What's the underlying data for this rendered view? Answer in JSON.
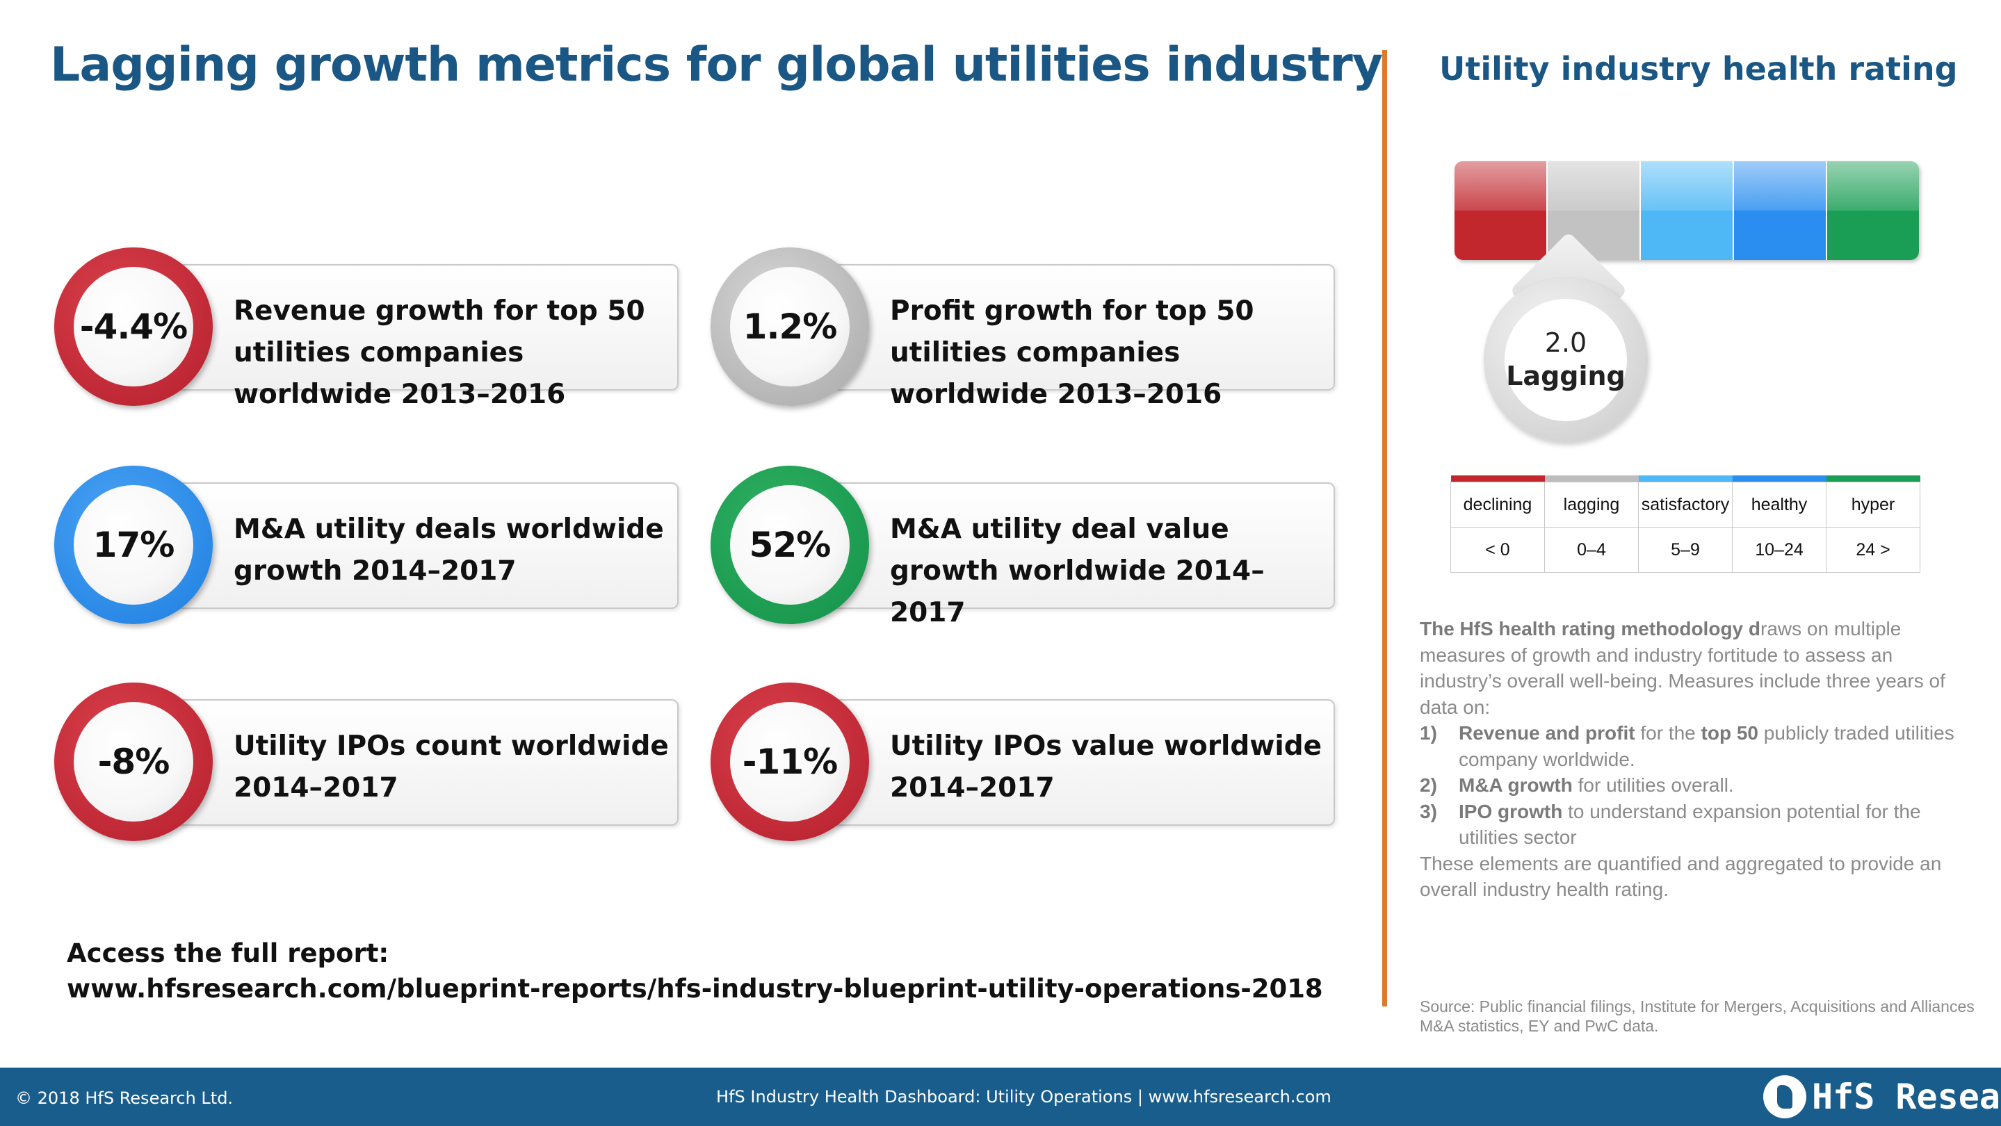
{
  "title": "Lagging growth metrics for global utilities industry",
  "metrics": [
    {
      "value": "-4.4%",
      "label": "Revenue growth for top 50 utilities companies worldwide 2013–2016",
      "ring_color": "red"
    },
    {
      "value": "1.2%",
      "label": "Profit growth for top 50 utilities companies worldwide 2013–2016",
      "ring_color": "gray"
    },
    {
      "value": "17%",
      "label": "M&A utility deals worldwide growth 2014–2017",
      "ring_color": "blue"
    },
    {
      "value": "52%",
      "label": "M&A utility deal value growth worldwide 2014–2017",
      "ring_color": "green"
    },
    {
      "value": "-8%",
      "label": "Utility IPOs count worldwide 2014–2017",
      "ring_color": "red"
    },
    {
      "value": "-11%",
      "label": "Utility IPOs value worldwide 2014–2017",
      "ring_color": "red"
    }
  ],
  "access": {
    "label": "Access the full report:",
    "url": "www.hfsresearch.com/blueprint-reports/hfs-industry-blueprint-utility-operations-2018"
  },
  "rating": {
    "title": "Utility industry health rating",
    "value": "2.0",
    "word": "Lagging",
    "selected_segment": "lagging",
    "segment_colors": [
      "#c1272d",
      "#c2c2c2",
      "#4db8f5",
      "#2a8ef0",
      "#1a9e55"
    ],
    "legend": [
      {
        "name": "declining",
        "range": "< 0",
        "color": "#c1272d"
      },
      {
        "name": "lagging",
        "range": "0–4",
        "color": "#bdbdbd"
      },
      {
        "name": "satisfactory",
        "range": "5–9",
        "color": "#4db8f5"
      },
      {
        "name": "healthy",
        "range": "10–24",
        "color": "#2a8ef0"
      },
      {
        "name": "hyper",
        "range": "24 >",
        "color": "#1a9e55"
      }
    ]
  },
  "methodology": {
    "intro_bold": "The HfS health rating methodology d",
    "intro_rest": "raws on multiple measures of growth and industry fortitude to assess an industry’s overall well-being. Measures include three years of data on:",
    "items": [
      {
        "num": "1)",
        "bold": "Revenue and profit",
        "mid": " for the ",
        "bold2": "top 50",
        "rest": " publicly traded utilities company worldwide."
      },
      {
        "num": "2)",
        "bold": "M&A growth",
        "mid": " for utilities overall.",
        "bold2": "",
        "rest": ""
      },
      {
        "num": "3)",
        "bold": "IPO growth",
        "mid": " to understand expansion potential for the utilities sector",
        "bold2": "",
        "rest": ""
      }
    ],
    "outro": "These elements are quantified and aggregated to provide an overall industry health rating."
  },
  "source": "Source: Public financial filings, Institute for Mergers, Acquisitions and Alliances M&A statistics, EY and PwC data.",
  "footer": {
    "copyright": "© 2018 HfS Research Ltd.",
    "center": "HfS Industry Health Dashboard: Utility Operations | www.hfsresearch.com",
    "logo_text": "HfS Research"
  }
}
